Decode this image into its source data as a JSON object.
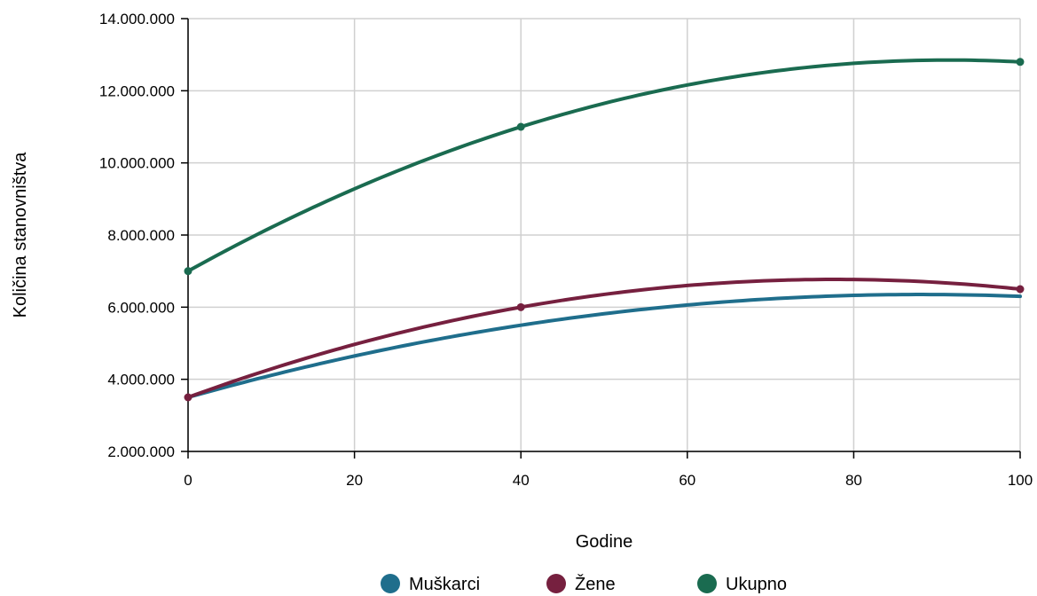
{
  "chart_data": {
    "type": "line",
    "title": "",
    "xlabel": "Godine",
    "ylabel": "Količina stanovništva",
    "xlim": [
      0,
      100
    ],
    "ylim": [
      2000000,
      14000000
    ],
    "x_ticks": [
      0,
      20,
      40,
      60,
      80,
      100
    ],
    "x_tick_labels": [
      "0",
      "20",
      "40",
      "60",
      "80",
      "100"
    ],
    "y_ticks": [
      2000000,
      4000000,
      6000000,
      8000000,
      10000000,
      12000000,
      14000000
    ],
    "y_tick_labels": [
      "2.000.000",
      "4.000.000",
      "6.000.000",
      "8.000.000",
      "10.000.000",
      "12.000.000",
      "14.000.000"
    ],
    "grid": true,
    "legend_position": "bottom",
    "curve": "smooth",
    "x": [
      0,
      40,
      100
    ],
    "series": [
      {
        "name": "Muškarci",
        "color": "#1f6e8c",
        "values": [
          3500000,
          5500000,
          6300000
        ],
        "markers": false
      },
      {
        "name": "Žene",
        "color": "#76203f",
        "values": [
          3500000,
          6000000,
          6500000
        ],
        "markers": true
      },
      {
        "name": "Ukupno",
        "color": "#1a6b50",
        "values": [
          7000000,
          11000000,
          12800000
        ],
        "markers": true
      }
    ]
  }
}
